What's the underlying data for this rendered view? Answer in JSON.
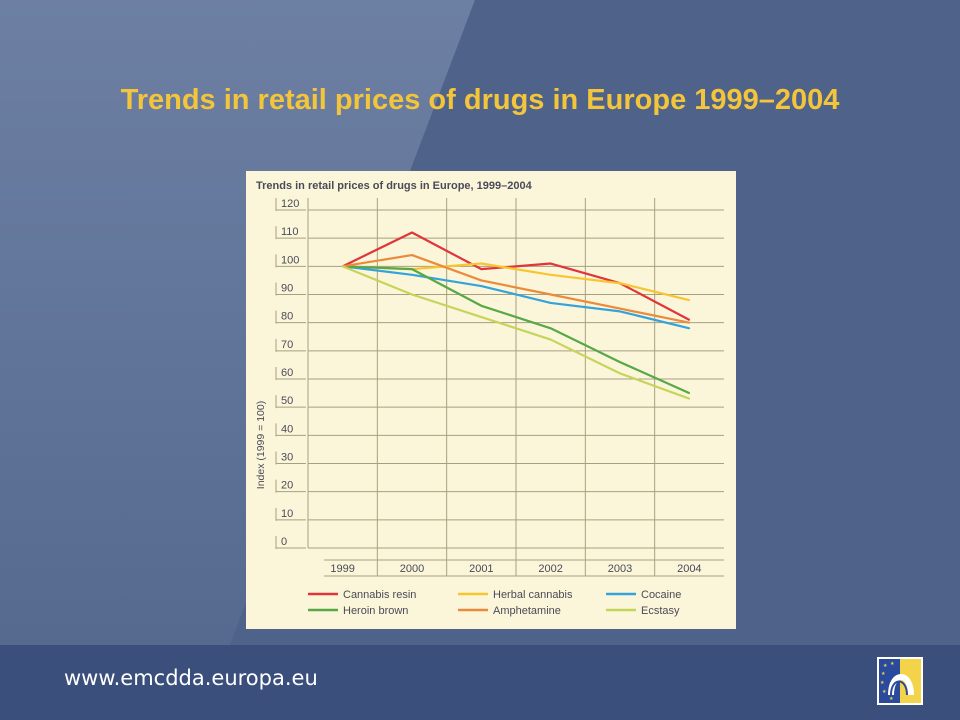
{
  "slide": {
    "title": "Trends in retail prices of drugs in Europe 1999–2004",
    "url": "www.emcdda.europa.eu"
  },
  "logo": {
    "icon": "emcdda-eu-stars-logo"
  },
  "colors": {
    "title": "#f3c53b",
    "chart_background": "#fbf6d9",
    "grid": "#a89f7e",
    "text": "#4a4a58"
  },
  "chart_data": {
    "type": "line",
    "title": "Trends in retail prices of drugs in Europe, 1999–2004",
    "ylabel": "Index (1999 = 100)",
    "xlabel": "",
    "x": [
      "1999",
      "2000",
      "2001",
      "2002",
      "2003",
      "2004"
    ],
    "yticks": [
      "120",
      "110",
      "100",
      "90",
      "80",
      "70",
      "60",
      "50",
      "40",
      "30",
      "20",
      "10",
      "0"
    ],
    "ylim": [
      0,
      120
    ],
    "grid": true,
    "legend_position": "bottom",
    "series": [
      {
        "name": "Cannabis resin",
        "color": "#e0353b",
        "values": [
          100,
          112,
          99,
          101,
          94,
          81
        ]
      },
      {
        "name": "Herbal cannabis",
        "color": "#f7c530",
        "values": [
          100,
          99,
          101,
          97,
          94,
          88
        ]
      },
      {
        "name": "Cocaine",
        "color": "#34a3dc",
        "values": [
          100,
          97,
          93,
          87,
          84,
          78
        ]
      },
      {
        "name": "Heroin brown",
        "color": "#57a846",
        "values": [
          100,
          99,
          86,
          78,
          66,
          55
        ]
      },
      {
        "name": "Amphetamine",
        "color": "#ec8a3c",
        "values": [
          100,
          104,
          95,
          90,
          85,
          80
        ]
      },
      {
        "name": "Ecstasy",
        "color": "#c5d55a",
        "values": [
          100,
          90,
          82,
          74,
          62,
          53
        ]
      }
    ]
  }
}
